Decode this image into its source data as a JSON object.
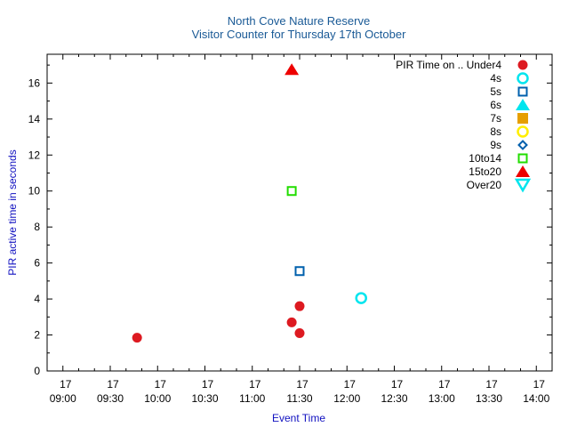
{
  "chart_data": {
    "type": "scatter",
    "title": "North Cove Nature Reserve",
    "subtitle": "Visitor Counter for Thursday 17th October",
    "xlabel": "Event Time",
    "ylabel": "PIR active time in seconds",
    "xlim": [
      "08:50",
      "14:10"
    ],
    "ylim": [
      0,
      17.6
    ],
    "x_ticks": [
      {
        "day": "17",
        "time": "09:00"
      },
      {
        "day": "17",
        "time": "09:30"
      },
      {
        "day": "17",
        "time": "10:00"
      },
      {
        "day": "17",
        "time": "10:30"
      },
      {
        "day": "17",
        "time": "11:00"
      },
      {
        "day": "17",
        "time": "11:30"
      },
      {
        "day": "17",
        "time": "12:00"
      },
      {
        "day": "17",
        "time": "12:30"
      },
      {
        "day": "17",
        "time": "13:00"
      },
      {
        "day": "17",
        "time": "13:30"
      },
      {
        "day": "17",
        "time": "14:00"
      }
    ],
    "y_ticks": [
      "0",
      "2",
      "4",
      "6",
      "8",
      "10",
      "12",
      "14",
      "16"
    ],
    "grid": false,
    "legend_position": "top-right",
    "series": [
      {
        "name": "PIR Time on .. Under4",
        "marker": "circle-filled",
        "color": "#dd1a21",
        "points": [
          {
            "x": "09:47",
            "y": 1.85
          },
          {
            "x": "11:25",
            "y": 2.7
          },
          {
            "x": "11:30",
            "y": 2.1
          },
          {
            "x": "11:30",
            "y": 3.6
          }
        ]
      },
      {
        "name": "4s",
        "marker": "circle-open",
        "color": "#00e5ee",
        "points": [
          {
            "x": "12:09",
            "y": 4.05
          }
        ]
      },
      {
        "name": "5s",
        "marker": "square-open",
        "color": "#0060ad",
        "points": [
          {
            "x": "11:30",
            "y": 5.55
          }
        ]
      },
      {
        "name": "6s",
        "marker": "triangle-filled",
        "color": "#00e5ee",
        "points": []
      },
      {
        "name": "7s",
        "marker": "square-filled",
        "color": "#e69f00",
        "points": []
      },
      {
        "name": "8s",
        "marker": "circle-open",
        "color": "#ffee00",
        "points": []
      },
      {
        "name": "9s",
        "marker": "diamond-open",
        "color": "#0060ad",
        "points": []
      },
      {
        "name": "10to14",
        "marker": "square-open",
        "color": "#22dd00",
        "points": [
          {
            "x": "11:25",
            "y": 10.0
          }
        ]
      },
      {
        "name": "15to20",
        "marker": "triangle-filled",
        "color": "#ee0000",
        "points": [
          {
            "x": "11:25",
            "y": 16.75
          }
        ]
      },
      {
        "name": "Over20",
        "marker": "triangle-down-open",
        "color": "#00e5ee",
        "points": []
      }
    ]
  }
}
